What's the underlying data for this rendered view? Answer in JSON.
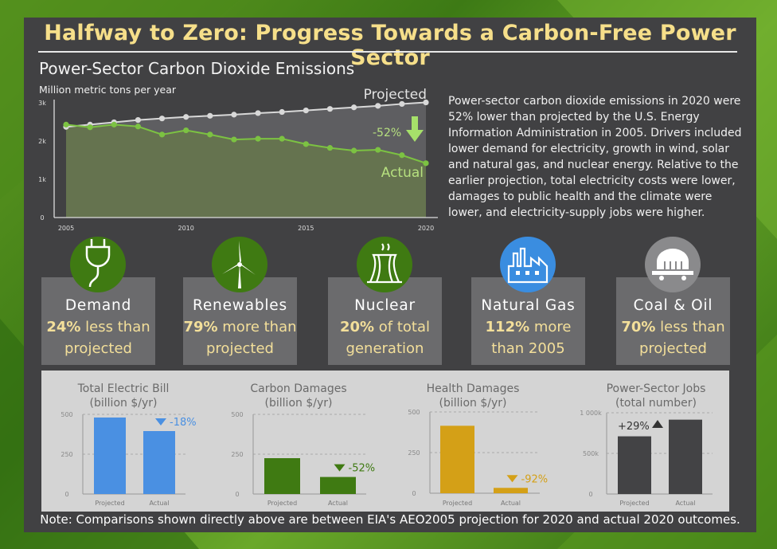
{
  "title": "Halfway to Zero: Progress Towards a Carbon-Free Power Sector",
  "subtitle": "Power-Sector Carbon Dioxide Emissions",
  "description": "Power-sector carbon dioxide emissions in 2020 were 52% lower than projected by the U.S. Energy Information Administration in 2005. Drivers included lower demand for electricity, growth in wind, solar and natural gas, and nuclear energy. Relative to the earlier projection, total electricity costs were lower, damages to public health and the climate were lower, and electricity-supply jobs were higher.",
  "cards": [
    {
      "name": "Demand",
      "bold": "24%",
      "rest": " less than projected",
      "icon": "plug-icon",
      "color": "#3f7a12"
    },
    {
      "name": "Renewables",
      "bold": "79%",
      "rest": " more than projected",
      "icon": "wind-turbine-icon",
      "color": "#3f7a12"
    },
    {
      "name": "Nuclear",
      "bold": "20%",
      "rest": " of total generation",
      "icon": "cooling-tower-icon",
      "color": "#3f7a12"
    },
    {
      "name": "Natural Gas",
      "bold": "112%",
      "rest": " more than 2005",
      "icon": "factory-icon",
      "color": "#3a8de0"
    },
    {
      "name": "Coal & Oil",
      "bold": "70%",
      "rest": " less than projected",
      "icon": "coal-cart-icon",
      "color": "#8a8a8c"
    }
  ],
  "note": "Note: Comparisons shown directly above are between EIA's AEO2005 projection for 2020 and actual 2020 outcomes.",
  "chart_data": [
    {
      "type": "area",
      "ylabel": "Million metric tons per year",
      "ylim": [
        0,
        3000
      ],
      "yticks": [
        "0",
        "1k",
        "2k",
        "3k"
      ],
      "xticks": [
        "2005",
        "2010",
        "2015",
        "2020"
      ],
      "x": [
        2005,
        2006,
        2007,
        2008,
        2009,
        2010,
        2011,
        2012,
        2013,
        2014,
        2015,
        2016,
        2017,
        2018,
        2019,
        2020
      ],
      "series": [
        {
          "name": "Projected",
          "color": "#d8d8d8",
          "values": [
            2370,
            2430,
            2490,
            2550,
            2590,
            2630,
            2660,
            2690,
            2730,
            2760,
            2800,
            2840,
            2880,
            2920,
            2970,
            3010
          ]
        },
        {
          "name": "Actual",
          "color": "#7cc242",
          "values": [
            2430,
            2360,
            2430,
            2380,
            2170,
            2280,
            2170,
            2040,
            2060,
            2060,
            1920,
            1820,
            1750,
            1770,
            1630,
            1420
          ]
        }
      ],
      "annotation": "-52%"
    },
    {
      "type": "bar",
      "title": "Total Electric Bill",
      "units": "(billion $/yr)",
      "categories": [
        "Projected",
        "Actual"
      ],
      "values": [
        480,
        395
      ],
      "ylim": [
        0,
        500
      ],
      "yticks": [
        "0",
        "250",
        "500"
      ],
      "change": "-18%",
      "color": "#4a90e2"
    },
    {
      "type": "bar",
      "title": "Carbon Damages",
      "units": "(billion $/yr)",
      "categories": [
        "Projected",
        "Actual"
      ],
      "values": [
        225,
        107
      ],
      "ylim": [
        0,
        500
      ],
      "yticks": [
        "0",
        "250",
        "500"
      ],
      "change": "-52%",
      "color": "#3f7a12"
    },
    {
      "type": "bar",
      "title": "Health Damages",
      "units": "(billion $/yr)",
      "categories": [
        "Projected",
        "Actual"
      ],
      "values": [
        415,
        33
      ],
      "ylim": [
        0,
        500
      ],
      "yticks": [
        "0",
        "250",
        "500"
      ],
      "change": "-92%",
      "color": "#d4a017"
    },
    {
      "type": "bar",
      "title": "Power-Sector Jobs",
      "units": "(total number)",
      "categories": [
        "Projected",
        "Actual"
      ],
      "values": [
        710000,
        915000
      ],
      "ylim": [
        0,
        1000000
      ],
      "yticks": [
        "0",
        "500k",
        "1 000k"
      ],
      "change": "+29%",
      "color": "#434345"
    }
  ]
}
